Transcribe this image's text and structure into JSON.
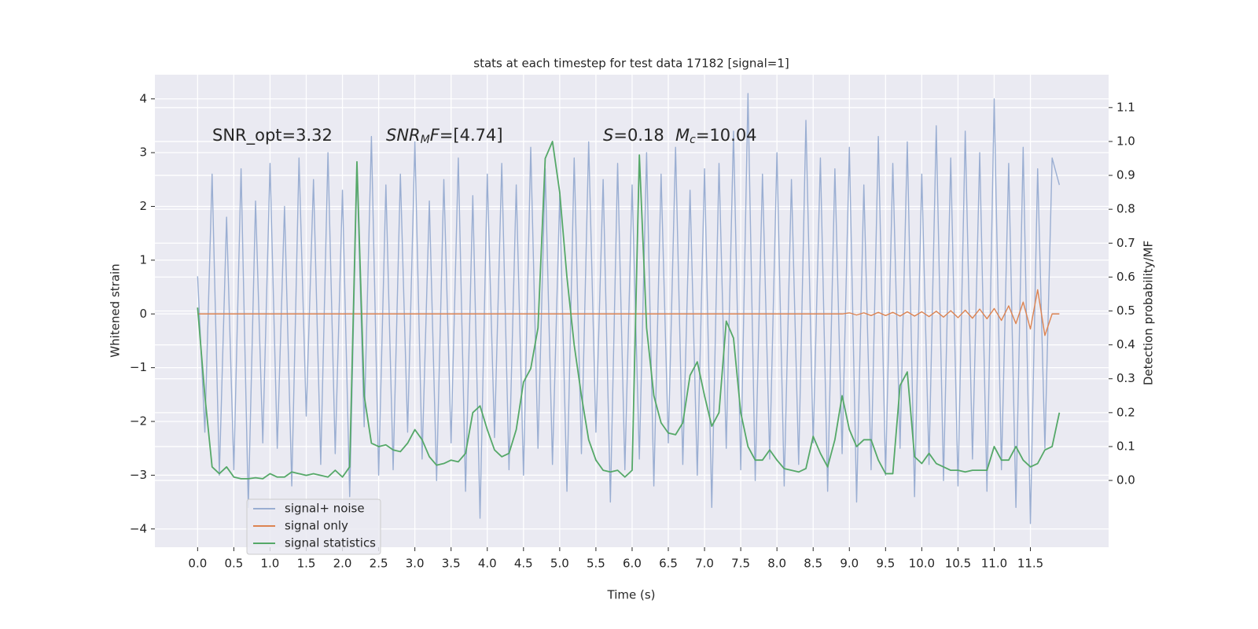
{
  "chart_data": {
    "type": "line",
    "title": "stats at each timestep for test data 17182 [signal=1]",
    "xlabel": "Time (s)",
    "ylabel": "Whitened strain",
    "y2label": "Detection probability/MF",
    "annotations": [
      [
        {
          "text": "SNR_opt=3.32",
          "style": "normal"
        }
      ],
      [
        {
          "text": "SNR",
          "style": "italic"
        },
        {
          "text": "M",
          "style": "sub"
        },
        {
          "text": "F",
          "style": "italic"
        },
        {
          "text": "=[4.74]",
          "style": "normal"
        }
      ],
      [
        {
          "text": "S",
          "style": "italic"
        },
        {
          "text": "=0.18",
          "style": "normal"
        }
      ],
      [
        {
          "text": "M",
          "style": "italic"
        },
        {
          "text": "c",
          "style": "sub"
        },
        {
          "text": "=10.04",
          "style": "normal"
        }
      ]
    ],
    "x": [
      0.0,
      0.1,
      0.2,
      0.3,
      0.4,
      0.5,
      0.6,
      0.7,
      0.8,
      0.9,
      1.0,
      1.1,
      1.2,
      1.3,
      1.4,
      1.5,
      1.6,
      1.7,
      1.8,
      1.9,
      2.0,
      2.1,
      2.2,
      2.3,
      2.4,
      2.5,
      2.6,
      2.7,
      2.8,
      2.9,
      3.0,
      3.1,
      3.2,
      3.3,
      3.4,
      3.5,
      3.6,
      3.7,
      3.8,
      3.9,
      4.0,
      4.1,
      4.2,
      4.3,
      4.4,
      4.5,
      4.6,
      4.7,
      4.8,
      4.9,
      5.0,
      5.1,
      5.2,
      5.3,
      5.4,
      5.5,
      5.6,
      5.7,
      5.8,
      5.9,
      6.0,
      6.1,
      6.2,
      6.3,
      6.4,
      6.5,
      6.6,
      6.7,
      6.8,
      6.9,
      7.0,
      7.1,
      7.2,
      7.3,
      7.4,
      7.5,
      7.6,
      7.7,
      7.8,
      7.9,
      8.0,
      8.1,
      8.2,
      8.3,
      8.4,
      8.5,
      8.6,
      8.7,
      8.8,
      8.9,
      9.0,
      9.1,
      9.2,
      9.3,
      9.4,
      9.5,
      9.6,
      9.7,
      9.8,
      9.9,
      10.0,
      10.1,
      10.2,
      10.3,
      10.4,
      10.5,
      10.6,
      10.7,
      10.8,
      10.9,
      11.0,
      11.1,
      11.2,
      11.3,
      11.4,
      11.5,
      11.6,
      11.7,
      11.8,
      11.9
    ],
    "series": [
      {
        "name": "signal+ noise",
        "color": "#9aaed2",
        "axis": "y",
        "values": [
          0.7,
          -2.2,
          2.6,
          -3.0,
          1.8,
          -2.9,
          2.7,
          -3.6,
          2.1,
          -2.4,
          2.8,
          -2.5,
          2.0,
          -3.2,
          2.9,
          -1.9,
          2.5,
          -2.8,
          3.0,
          -2.6,
          2.3,
          -3.4,
          2.7,
          -2.1,
          3.3,
          -3.0,
          2.4,
          -2.9,
          2.6,
          -2.2,
          3.2,
          -2.7,
          2.1,
          -3.1,
          2.5,
          -2.4,
          2.9,
          -3.3,
          2.2,
          -3.8,
          2.6,
          -2.3,
          2.8,
          -2.9,
          2.4,
          -3.0,
          3.1,
          -2.5,
          2.7,
          -2.8,
          2.2,
          -3.3,
          2.9,
          -2.6,
          3.2,
          -2.2,
          2.5,
          -3.5,
          2.8,
          -2.9,
          2.4,
          -2.7,
          3.0,
          -3.2,
          2.6,
          -2.4,
          3.1,
          -2.8,
          2.3,
          -3.0,
          2.7,
          -3.6,
          2.8,
          -2.5,
          3.4,
          -2.9,
          4.1,
          -3.1,
          2.6,
          -2.7,
          3.0,
          -3.2,
          2.5,
          -2.8,
          3.6,
          -2.4,
          2.9,
          -3.3,
          2.7,
          -2.6,
          3.1,
          -3.5,
          2.4,
          -2.9,
          3.3,
          -3.0,
          2.8,
          -2.5,
          3.2,
          -3.4,
          2.6,
          -2.8,
          3.5,
          -3.1,
          2.9,
          -3.2,
          3.4,
          -2.7,
          3.0,
          -3.3,
          4.0,
          -2.9,
          2.8,
          -3.6,
          3.1,
          -3.9,
          2.7,
          -2.5,
          2.9,
          2.4
        ]
      },
      {
        "name": "signal only",
        "color": "#dd8452",
        "axis": "y",
        "values": [
          0,
          0,
          0,
          0,
          0,
          0,
          0,
          0,
          0,
          0,
          0,
          0,
          0,
          0,
          0,
          0,
          0,
          0,
          0,
          0,
          0,
          0,
          0,
          0,
          0,
          0,
          0,
          0,
          0,
          0,
          0,
          0,
          0,
          0,
          0,
          0,
          0,
          0,
          0,
          0,
          0,
          0,
          0,
          0,
          0,
          0,
          0,
          0,
          0,
          0,
          0,
          0,
          0,
          0,
          0,
          0,
          0,
          0,
          0,
          0,
          0,
          0,
          0,
          0,
          0,
          0,
          0,
          0,
          0,
          0,
          0,
          0,
          0,
          0,
          0,
          0,
          0,
          0,
          0,
          0,
          0,
          0,
          0,
          0,
          0,
          0,
          0,
          0,
          0,
          0,
          0.02,
          -0.02,
          0.02,
          -0.03,
          0.03,
          -0.03,
          0.03,
          -0.04,
          0.04,
          -0.04,
          0.04,
          -0.05,
          0.05,
          -0.06,
          0.06,
          -0.07,
          0.07,
          -0.08,
          0.09,
          -0.09,
          0.1,
          -0.12,
          0.15,
          -0.18,
          0.22,
          -0.28,
          0.45,
          -0.4,
          0,
          0
        ]
      },
      {
        "name": "signal statistics",
        "color": "#55a868",
        "axis": "y2",
        "values": [
          0.51,
          0.25,
          0.04,
          0.02,
          0.04,
          0.01,
          0.005,
          0.005,
          0.008,
          0.005,
          0.02,
          0.01,
          0.01,
          0.025,
          0.02,
          0.015,
          0.02,
          0.015,
          0.01,
          0.03,
          0.01,
          0.04,
          0.94,
          0.25,
          0.11,
          0.1,
          0.105,
          0.09,
          0.085,
          0.11,
          0.15,
          0.12,
          0.07,
          0.045,
          0.05,
          0.06,
          0.055,
          0.08,
          0.2,
          0.22,
          0.15,
          0.09,
          0.07,
          0.08,
          0.15,
          0.29,
          0.33,
          0.45,
          0.95,
          1.0,
          0.85,
          0.6,
          0.4,
          0.25,
          0.12,
          0.06,
          0.03,
          0.025,
          0.03,
          0.01,
          0.03,
          0.96,
          0.45,
          0.25,
          0.17,
          0.14,
          0.135,
          0.17,
          0.31,
          0.35,
          0.25,
          0.16,
          0.2,
          0.47,
          0.42,
          0.2,
          0.1,
          0.06,
          0.06,
          0.09,
          0.06,
          0.035,
          0.03,
          0.025,
          0.035,
          0.13,
          0.08,
          0.04,
          0.12,
          0.25,
          0.15,
          0.1,
          0.12,
          0.12,
          0.06,
          0.02,
          0.02,
          0.28,
          0.32,
          0.07,
          0.05,
          0.08,
          0.05,
          0.04,
          0.03,
          0.03,
          0.025,
          0.03,
          0.03,
          0.03,
          0.1,
          0.06,
          0.06,
          0.1,
          0.06,
          0.04,
          0.05,
          0.09,
          0.1,
          0.2
        ]
      }
    ],
    "xlim": [
      -0.59,
      12.58
    ],
    "xticks": [
      {
        "value": 0,
        "label": "0.0"
      },
      0.5,
      {
        "value": 1,
        "label": "1.0"
      },
      1.5,
      {
        "value": 2,
        "label": "2.0"
      },
      2.5,
      {
        "value": 3,
        "label": "3.0"
      },
      3.5,
      {
        "value": 4,
        "label": "4.0"
      },
      4.5,
      {
        "value": 5,
        "label": "5.0"
      },
      5.5,
      {
        "value": 6,
        "label": "6.0"
      },
      6.5,
      {
        "value": 7,
        "label": "7.0"
      },
      7.5,
      {
        "value": 8,
        "label": "8.0"
      },
      8.5,
      {
        "value": 9,
        "label": "9.0"
      },
      9.5,
      {
        "value": 10,
        "label": "10.0"
      },
      10.5,
      {
        "value": 11,
        "label": "11.0"
      },
      11.5
    ],
    "ylim": [
      -4.34,
      4.45
    ],
    "yticks": [
      {
        "value": -4,
        "label": "−4"
      },
      {
        "value": -3,
        "label": "−3"
      },
      {
        "value": -2,
        "label": "−2"
      },
      {
        "value": -1,
        "label": "−1"
      },
      0,
      1,
      2,
      3,
      4
    ],
    "y2lim": [
      -0.197,
      1.197
    ],
    "y2ticks": [
      {
        "value": 0,
        "label": "0.0"
      },
      0.1,
      0.2,
      0.3,
      0.4,
      0.5,
      0.6,
      0.7,
      0.8,
      0.9,
      {
        "value": 1,
        "label": "1.0"
      },
      1.1
    ],
    "grid": true,
    "legend": "lower left"
  }
}
